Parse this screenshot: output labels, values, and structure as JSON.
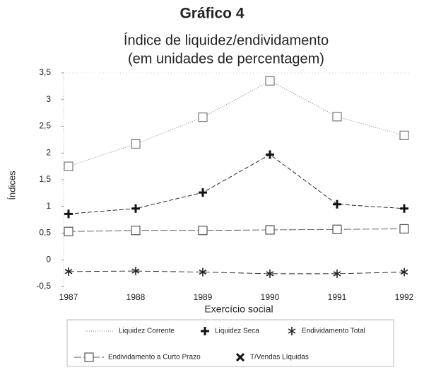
{
  "chart_data": {
    "type": "line",
    "title": "Gráfico 4",
    "subtitle": [
      "Índice de liquidez/endividamento",
      "(em unidades de percentagem)"
    ],
    "y_label": "Índices",
    "x_label": "Exercício social",
    "categories": [
      "1987",
      "1988",
      "1989",
      "1990",
      "1991",
      "1992"
    ],
    "ylim": [
      -0.5,
      3.5
    ],
    "yticks": [
      {
        "value": -0.5,
        "label": "-0,5"
      },
      0,
      {
        "value": 0.5,
        "label": "0,5"
      },
      1,
      {
        "value": 1.5,
        "label": "1,5"
      },
      2,
      {
        "value": 2.5,
        "label": "2,5"
      },
      3,
      {
        "value": 3.5,
        "label": "3,5"
      }
    ],
    "series": [
      {
        "name": "Liquidez Corrente",
        "color": "#777777",
        "marker": "square",
        "values": [
          1.75,
          2.17,
          2.67,
          3.35,
          2.68,
          2.33
        ]
      },
      {
        "name": "Liquidez Seca",
        "color": "#111111",
        "marker": "plus",
        "values": [
          0.86,
          0.96,
          1.26,
          1.97,
          1.04,
          0.96
        ]
      },
      {
        "name": "Endividamento Total",
        "color": "#222222",
        "marker": "star",
        "values": [
          -0.22,
          -0.21,
          -0.23,
          -0.26,
          -0.26,
          -0.23
        ]
      },
      {
        "name": "Endividamento a Curto Prazo",
        "color": "#555555",
        "marker": "square",
        "values": [
          0.53,
          0.55,
          0.55,
          0.56,
          0.57,
          0.58
        ]
      },
      {
        "name": "T/Vendas Líquidas",
        "color": "#111111",
        "marker": "x",
        "values": [
          null,
          null,
          null,
          null,
          null,
          null
        ]
      }
    ]
  }
}
